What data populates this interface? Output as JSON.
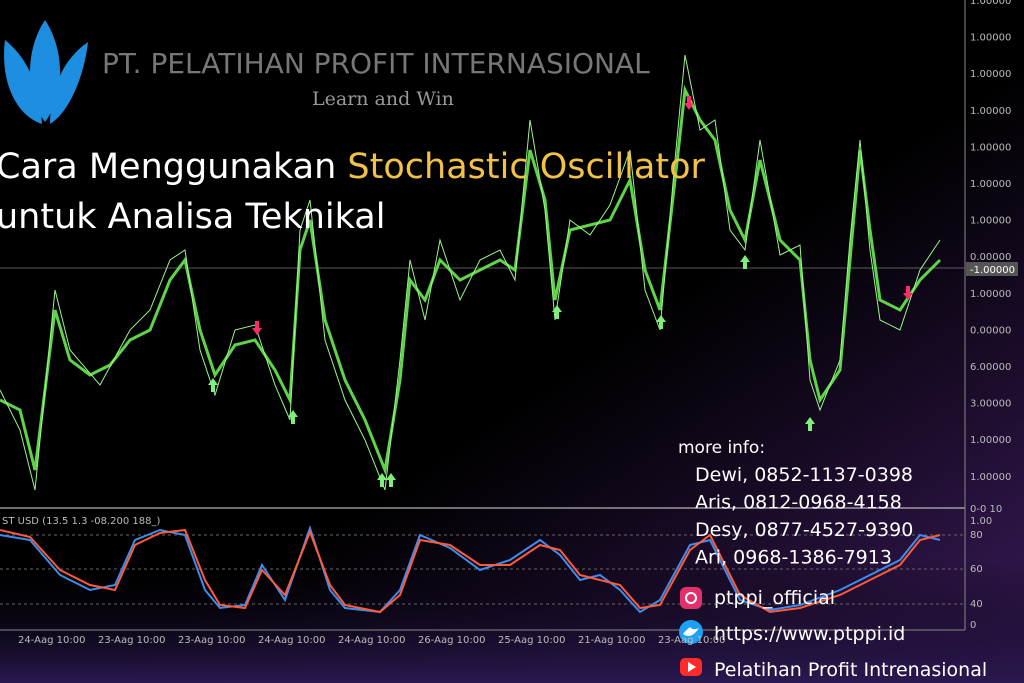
{
  "header": {
    "company": "PT. PELATIHAN PROFIT INTERNASIONAL",
    "tagline": "Learn and Win"
  },
  "title": {
    "line1_start": "Cara Menggunakan ",
    "line1_highlight": "Stochastic Oscillator",
    "line2": "untuk Analisa Teknikal"
  },
  "price_axis": {
    "labels": [
      "1.00000",
      "1.00000",
      "1.00000",
      "1.00000",
      "1.00000",
      "1.00000",
      "1.00000",
      "0.00000",
      "1.00000",
      "0.00000",
      "6.00000",
      "3.00000",
      "1.00000",
      "1.00000",
      "0-0 10"
    ],
    "current": "-1.00000"
  },
  "indicator": {
    "label": "ST USD (13.5 1.3 -08.200 188_)",
    "axis_labels": [
      "1.00",
      "80",
      "60",
      "40",
      "0"
    ]
  },
  "time_axis": {
    "labels": [
      "24-Aag 10:00",
      "23-Aag 10:00",
      "23-Aag 10:00",
      "24-Aag 10:00",
      "24-Aag 10:00",
      "26-Aag 10:00",
      "25-Aag 10:00",
      "21-Aag 10:00",
      "23-Aag 10:00"
    ]
  },
  "contact": {
    "heading": "more info:",
    "people": [
      "Dewi, 0852-1137-0398",
      "Aris, 0812-0968-4158",
      "Desy, 0877-4527-9390",
      "Ari, 0968-1386-7913"
    ]
  },
  "social": {
    "instagram": "ptppi_official",
    "website": "https://www.ptppi.id",
    "youtube": "Pelatihan Profit Intrenasional"
  }
}
